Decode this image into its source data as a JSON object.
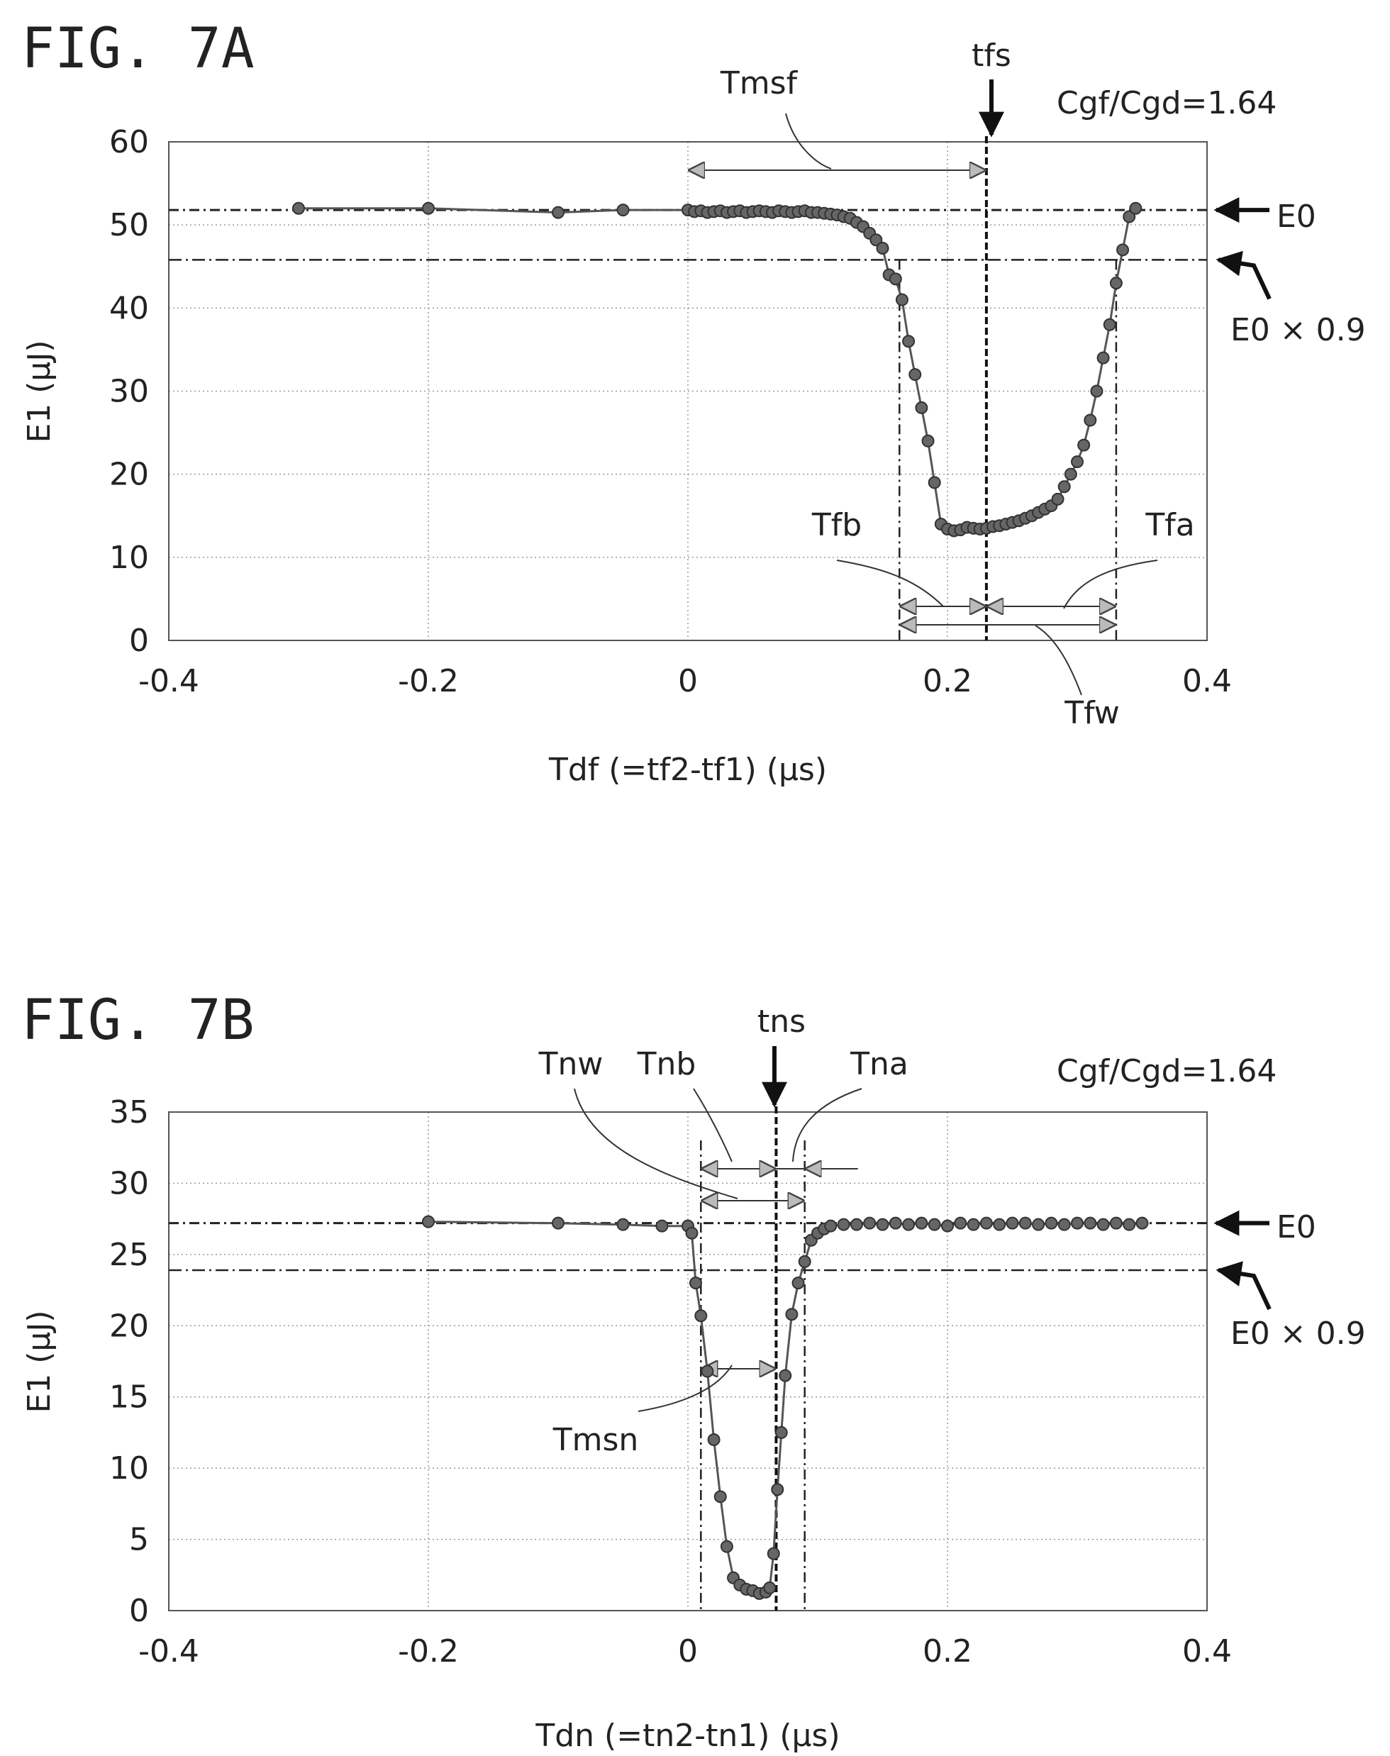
{
  "chart_data": [
    {
      "figure_label": "FIG. 7A",
      "type": "scatter",
      "ratio_label": "Cgf/Cgd=1.64",
      "xlabel": "Tdf (=tf2-tf1) (µs)",
      "ylabel": "E1 (µJ)",
      "xlim": [
        -0.4,
        0.4
      ],
      "ylim": [
        0,
        60
      ],
      "x_ticks": [
        -0.4,
        -0.2,
        0,
        0.2,
        0.4
      ],
      "x_tick_labels": [
        "-0.4",
        "-0.2",
        "0",
        "0.2",
        "0.4"
      ],
      "y_ticks": [
        0,
        10,
        20,
        30,
        40,
        50,
        60
      ],
      "y_tick_labels": [
        "0",
        "10",
        "20",
        "30",
        "40",
        "50",
        "60"
      ],
      "grid": true,
      "E0": 51.8,
      "E0_09": 45.8,
      "vlines": {
        "left": 0.163,
        "center": 0.23,
        "right": 0.33,
        "t0": 0
      },
      "annotations": {
        "tfs": "tfs",
        "Tmsf": "Tmsf",
        "Tfb": "Tfb",
        "Tfa": "Tfa",
        "Tfw": "Tfw",
        "E0": "E0",
        "E0x09": "E0 × 0.9"
      },
      "series": [
        {
          "x": [
            -0.3,
            -0.2,
            -0.1,
            -0.05,
            0,
            0.005,
            0.01,
            0.015,
            0.02,
            0.025,
            0.03,
            0.035,
            0.04,
            0.045,
            0.05,
            0.055,
            0.06,
            0.065,
            0.07,
            0.075,
            0.08,
            0.085,
            0.09,
            0.095,
            0.1,
            0.105,
            0.11,
            0.115,
            0.12,
            0.125,
            0.13,
            0.135,
            0.14,
            0.145,
            0.15,
            0.155,
            0.16,
            0.165,
            0.17,
            0.175,
            0.18,
            0.185,
            0.19,
            0.195,
            0.2,
            0.205,
            0.21,
            0.215,
            0.22,
            0.225,
            0.23,
            0.235,
            0.24,
            0.245,
            0.25,
            0.255,
            0.26,
            0.265,
            0.27,
            0.275,
            0.28,
            0.285,
            0.29,
            0.295,
            0.3,
            0.305,
            0.31,
            0.315,
            0.32,
            0.325,
            0.33,
            0.335,
            0.34,
            0.345
          ],
          "y": [
            52,
            52,
            51.5,
            51.8,
            51.8,
            51.6,
            51.7,
            51.5,
            51.6,
            51.7,
            51.5,
            51.6,
            51.7,
            51.5,
            51.6,
            51.7,
            51.6,
            51.5,
            51.7,
            51.6,
            51.5,
            51.6,
            51.7,
            51.5,
            51.5,
            51.4,
            51.3,
            51.2,
            51.0,
            50.8,
            50.3,
            49.8,
            49.0,
            48.2,
            47.2,
            44.0,
            43.5,
            41.0,
            36.0,
            32.0,
            28.0,
            24.0,
            19.0,
            14.0,
            13.4,
            13.2,
            13.3,
            13.6,
            13.5,
            13.4,
            13.5,
            13.7,
            13.8,
            14.0,
            14.2,
            14.4,
            14.7,
            15.0,
            15.4,
            15.8,
            16.2,
            17.0,
            18.5,
            20.0,
            21.5,
            23.5,
            26.5,
            30.0,
            34.0,
            38.0,
            43.0,
            47.0,
            51.0,
            52.0
          ]
        }
      ]
    },
    {
      "figure_label": "FIG. 7B",
      "type": "scatter",
      "ratio_label": "Cgf/Cgd=1.64",
      "xlabel": "Tdn (=tn2-tn1) (µs)",
      "ylabel": "E1 (µJ)",
      "xlim": [
        -0.4,
        0.4
      ],
      "ylim": [
        0,
        35
      ],
      "x_ticks": [
        -0.4,
        -0.2,
        0,
        0.2,
        0.4
      ],
      "x_tick_labels": [
        "-0.4",
        "-0.2",
        "0",
        "0.2",
        "0.4"
      ],
      "y_ticks": [
        0,
        5,
        10,
        15,
        20,
        25,
        30,
        35
      ],
      "y_tick_labels": [
        "0",
        "5",
        "10",
        "15",
        "20",
        "25",
        "30",
        "35"
      ],
      "grid": true,
      "E0": 27.2,
      "E0_09": 23.9,
      "vlines": {
        "left": 0.01,
        "center": 0.068,
        "right": 0.09
      },
      "annotations": {
        "tns": "tns",
        "Tnw": "Tnw",
        "Tnb": "Tnb",
        "Tna": "Tna",
        "Tmsn": "Tmsn",
        "E0": "E0",
        "E0x09": "E0 × 0.9"
      },
      "series": [
        {
          "x": [
            -0.2,
            -0.1,
            -0.05,
            -0.02,
            0,
            0.003,
            0.006,
            0.01,
            0.015,
            0.02,
            0.025,
            0.03,
            0.035,
            0.04,
            0.045,
            0.05,
            0.055,
            0.06,
            0.063,
            0.066,
            0.069,
            0.072,
            0.075,
            0.08,
            0.085,
            0.09,
            0.095,
            0.1,
            0.105,
            0.11,
            0.12,
            0.13,
            0.14,
            0.15,
            0.16,
            0.17,
            0.18,
            0.19,
            0.2,
            0.21,
            0.22,
            0.23,
            0.24,
            0.25,
            0.26,
            0.27,
            0.28,
            0.29,
            0.3,
            0.31,
            0.32,
            0.33,
            0.34,
            0.35
          ],
          "y": [
            27.3,
            27.2,
            27.1,
            27.0,
            27.0,
            26.5,
            23.0,
            20.7,
            16.8,
            12.0,
            8.0,
            4.5,
            2.3,
            1.8,
            1.5,
            1.4,
            1.2,
            1.3,
            1.6,
            4.0,
            8.5,
            12.5,
            16.5,
            20.8,
            23.0,
            24.5,
            26.0,
            26.5,
            26.8,
            27.0,
            27.1,
            27.1,
            27.2,
            27.1,
            27.2,
            27.1,
            27.2,
            27.1,
            27.0,
            27.2,
            27.1,
            27.2,
            27.1,
            27.2,
            27.2,
            27.1,
            27.2,
            27.1,
            27.2,
            27.2,
            27.1,
            27.2,
            27.1,
            27.2
          ]
        }
      ]
    }
  ]
}
